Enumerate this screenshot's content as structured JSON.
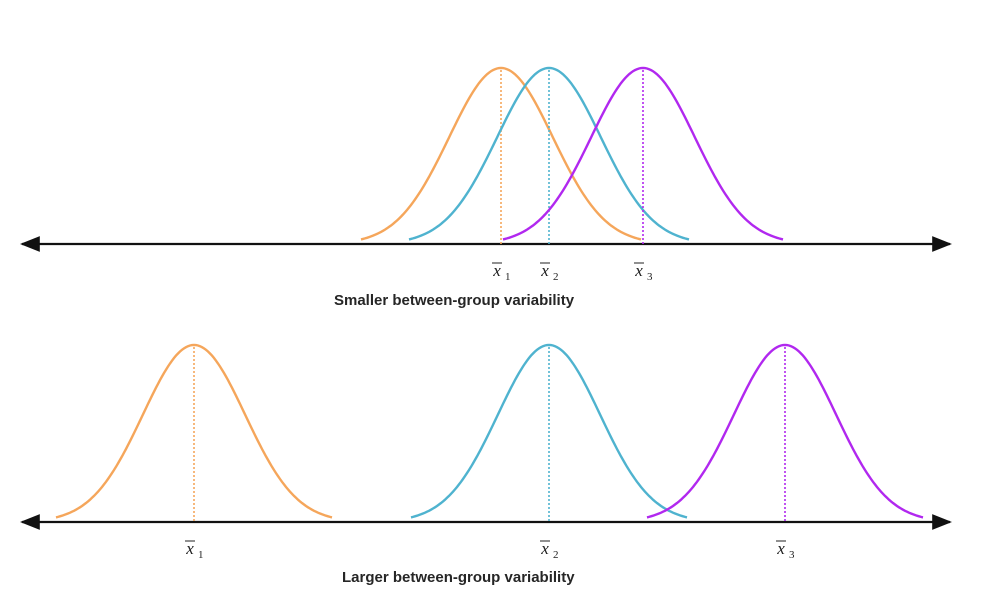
{
  "panels": [
    {
      "caption": "Smaller between-group variability",
      "groups": [
        {
          "mean_symbol": "x",
          "subscript": "1",
          "color": "#f5a65b"
        },
        {
          "mean_symbol": "x",
          "subscript": "2",
          "color": "#4fb3cf"
        },
        {
          "mean_symbol": "x",
          "subscript": "3",
          "color": "#b128ef"
        }
      ]
    },
    {
      "caption": "Larger between-group variability",
      "groups": [
        {
          "mean_symbol": "x",
          "subscript": "1",
          "color": "#f5a65b"
        },
        {
          "mean_symbol": "x",
          "subscript": "2",
          "color": "#4fb3cf"
        },
        {
          "mean_symbol": "x",
          "subscript": "3",
          "color": "#b128ef"
        }
      ]
    }
  ],
  "axis_color": "#111111"
}
